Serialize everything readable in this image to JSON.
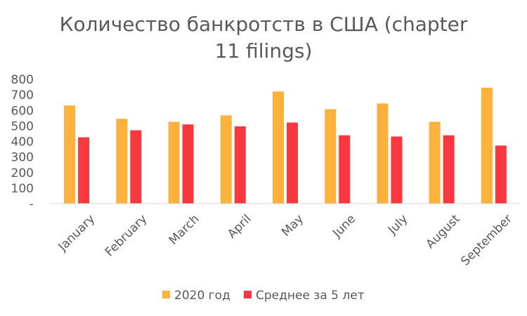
{
  "chart_data": {
    "type": "bar",
    "title_lines": [
      "Количество банкротств в США (chapter",
      "11 filings)"
    ],
    "categories": [
      "January",
      "February",
      "March",
      "April",
      "May",
      "June",
      "July",
      "August",
      "September"
    ],
    "series": [
      {
        "name": "2020 год",
        "color": "#FBB13C",
        "values": [
          632,
          546,
          527,
          568,
          722,
          608,
          645,
          527,
          746
        ]
      },
      {
        "name": "Среднее за 5 лет",
        "color": "#F8383E",
        "values": [
          427,
          472,
          510,
          498,
          522,
          440,
          432,
          440,
          374
        ]
      }
    ],
    "ylim": [
      0,
      800
    ],
    "yticks": [
      0,
      100,
      200,
      300,
      400,
      500,
      600,
      700,
      800
    ],
    "ytick_labels": [
      "-",
      "100",
      "200",
      "300",
      "400",
      "500",
      "600",
      "700",
      "800"
    ],
    "xlabel": "",
    "ylabel": "",
    "grid": false,
    "legend_position": "bottom"
  }
}
